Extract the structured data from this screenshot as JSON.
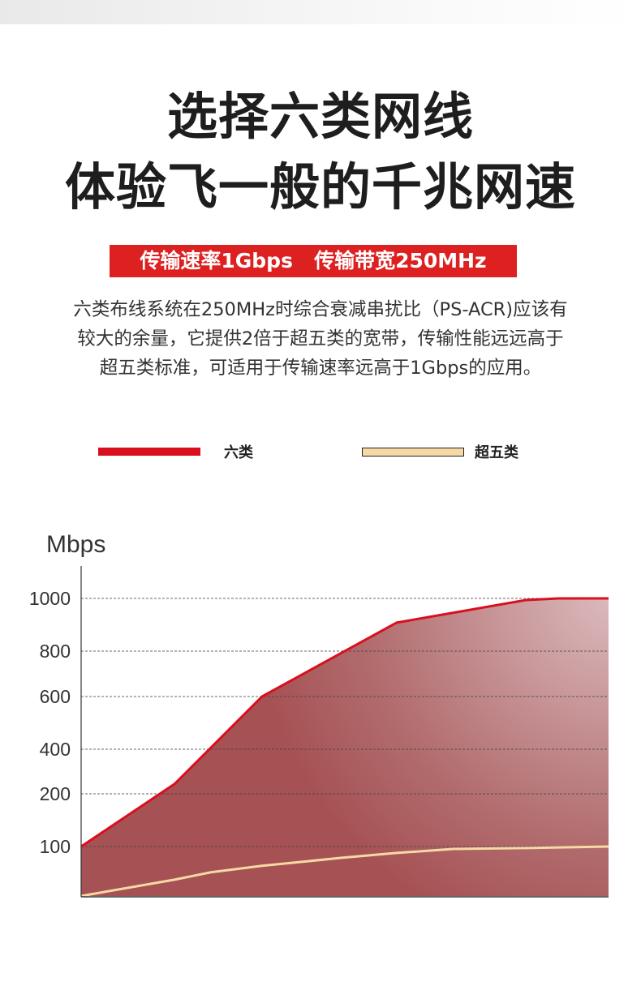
{
  "headline": {
    "line1": "选择六类网线",
    "line2": "体验飞一般的千兆网速"
  },
  "banner": {
    "text": "传输速率1Gbps   传输带宽250MHz",
    "color": "#dd2020"
  },
  "description": [
    "六类布线系统在250MHz时综合衰减串扰比（PS-ACR)应该有",
    "较大的余量，它提供2倍于超五类的宽带，传输性能远远高于",
    "超五类标准，可适用于传输速率远高于1Gbps的应用。"
  ],
  "chart_data": {
    "type": "area",
    "ylabel": "Mbps",
    "yticks": [
      100,
      200,
      400,
      600,
      800,
      1000
    ],
    "ylim": [
      0,
      1000
    ],
    "y_scale": "tick-spaced (non-linear)",
    "grid": "dashed horizontal",
    "legend_placement": "top",
    "series": [
      {
        "name": "六类",
        "color": "#d90f1e",
        "fill": "#a85254",
        "x": [
          0,
          17.7,
          34.3,
          59.8,
          84.4,
          90.5,
          100
        ],
        "values": [
          100,
          244,
          600,
          908,
          994,
          1000,
          1000
        ]
      },
      {
        "name": "超五类",
        "color": "#f6d9a5",
        "x": [
          0,
          17.7,
          24.6,
          34.3,
          49.2,
          59.8,
          70.5,
          84.4,
          100
        ],
        "values": [
          0,
          33,
          48,
          61,
          77,
          87,
          95,
          97,
          100
        ]
      }
    ]
  }
}
